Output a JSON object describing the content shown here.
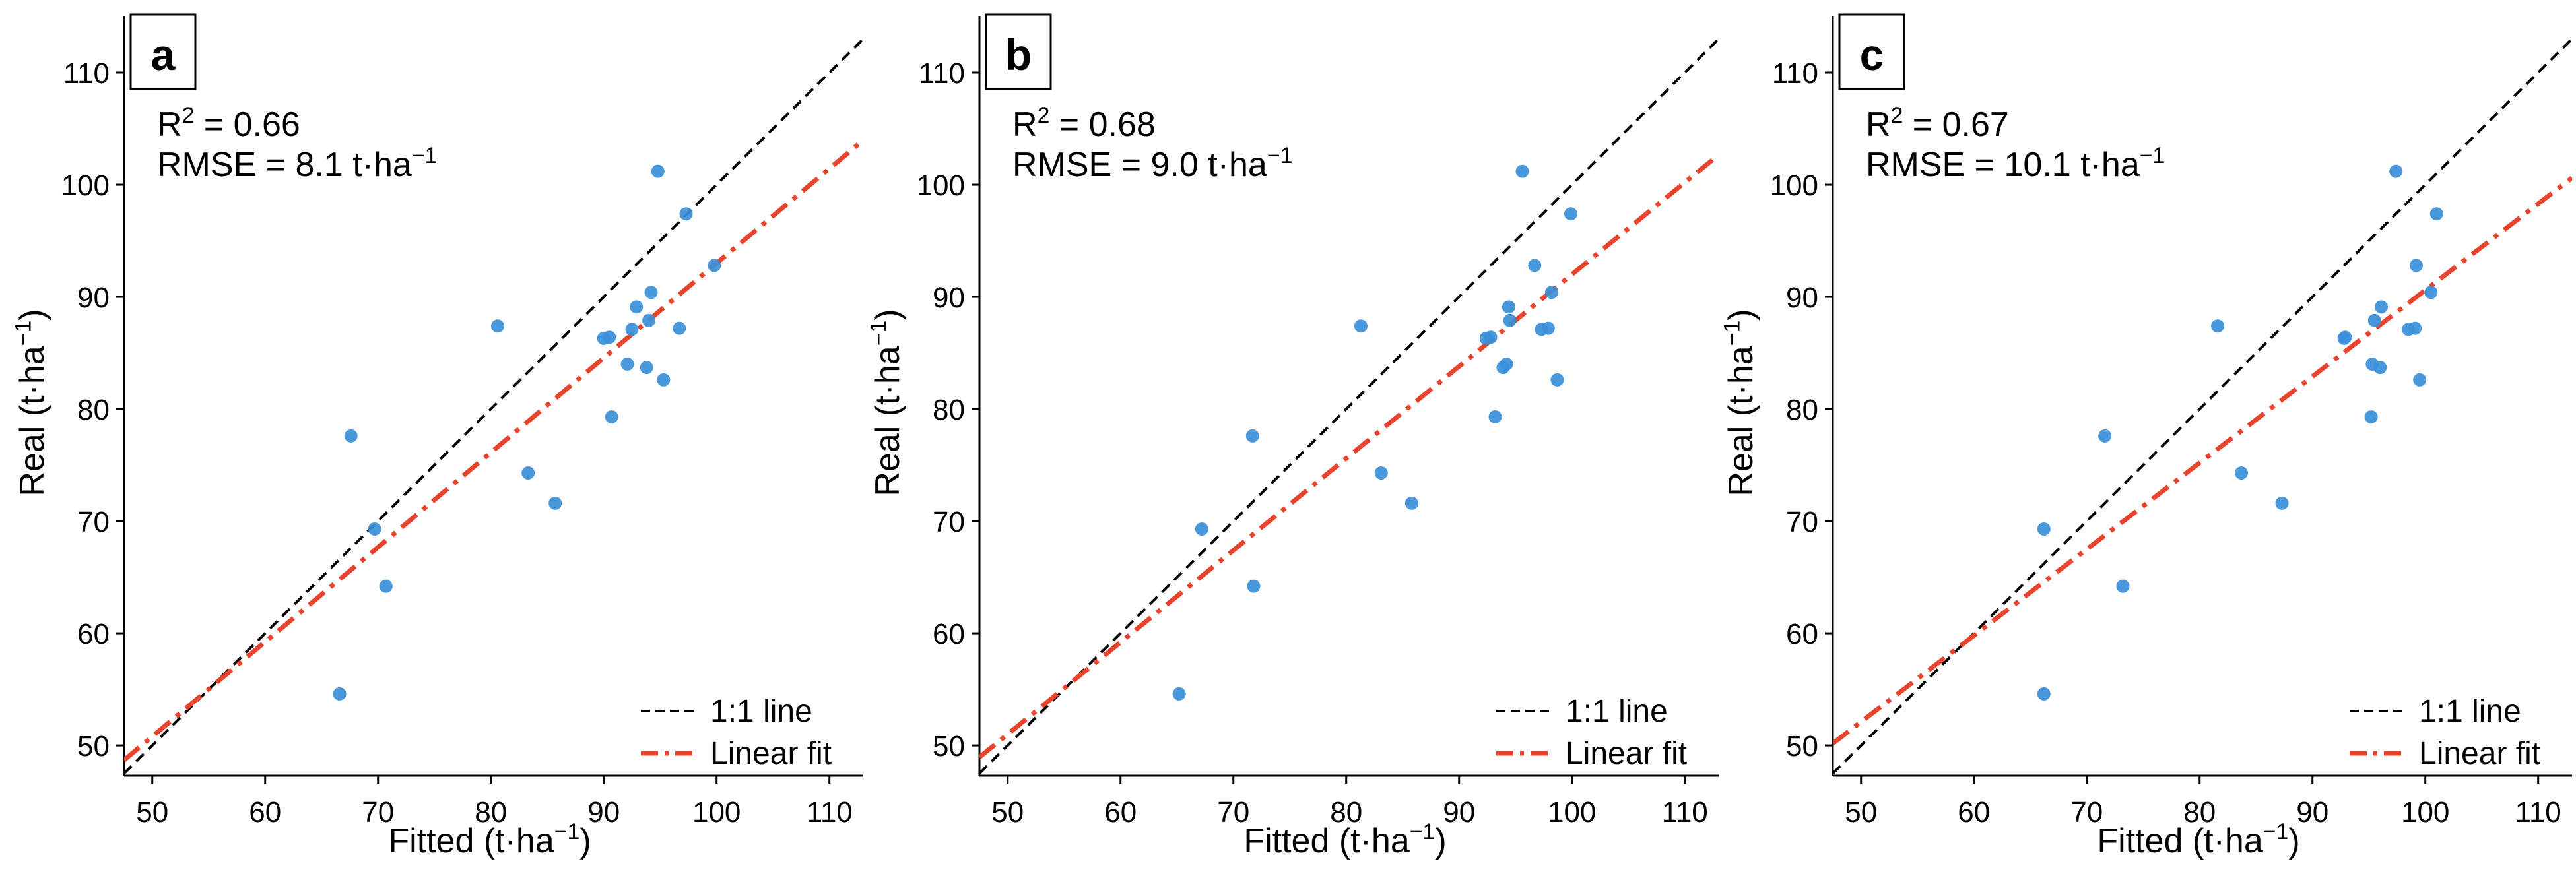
{
  "chart_data": [
    {
      "type": "scatter",
      "panel_label": "a",
      "stats": {
        "r2_value": "0.66",
        "rmse": "RMSE = 8.1 t·ha",
        "rmse_exp": "−1"
      },
      "xlim": [
        47.5,
        113
      ],
      "ylim": [
        47.3,
        115
      ],
      "points": [
        [
          66.6,
          54.6
        ],
        [
          67.6,
          77.6
        ],
        [
          69.7,
          69.3
        ],
        [
          70.7,
          64.2
        ],
        [
          80.6,
          87.4
        ],
        [
          83.3,
          74.3
        ],
        [
          85.7,
          71.6
        ],
        [
          90.0,
          86.3
        ],
        [
          90.5,
          86.4
        ],
        [
          90.7,
          79.3
        ],
        [
          92.1,
          84.0
        ],
        [
          92.5,
          87.1
        ],
        [
          92.9,
          89.1
        ],
        [
          93.8,
          83.7
        ],
        [
          94.0,
          87.9
        ],
        [
          94.2,
          90.4
        ],
        [
          94.8,
          101.2
        ],
        [
          95.3,
          82.6
        ],
        [
          96.7,
          87.2
        ],
        [
          97.3,
          97.4
        ],
        [
          99.8,
          92.8
        ]
      ],
      "fit": {
        "slope": 0.844,
        "intercept": 8.6
      }
    },
    {
      "type": "scatter",
      "panel_label": "b",
      "stats": {
        "r2_value": "0.68",
        "rmse": "RMSE = 9.0 t·ha",
        "rmse_exp": "−1"
      },
      "xlim": [
        47.5,
        113
      ],
      "ylim": [
        47.3,
        115
      ],
      "points": [
        [
          65.2,
          54.6
        ],
        [
          67.2,
          69.3
        ],
        [
          71.7,
          77.6
        ],
        [
          71.8,
          64.2
        ],
        [
          81.3,
          87.4
        ],
        [
          83.1,
          74.3
        ],
        [
          85.8,
          71.6
        ],
        [
          92.4,
          86.3
        ],
        [
          92.8,
          86.4
        ],
        [
          93.2,
          79.3
        ],
        [
          93.9,
          83.7
        ],
        [
          94.2,
          84.0
        ],
        [
          94.4,
          89.1
        ],
        [
          94.5,
          87.9
        ],
        [
          95.6,
          101.2
        ],
        [
          96.7,
          92.8
        ],
        [
          97.3,
          87.1
        ],
        [
          97.9,
          87.2
        ],
        [
          98.2,
          90.4
        ],
        [
          98.7,
          82.6
        ],
        [
          99.9,
          97.4
        ]
      ],
      "fit": {
        "slope": 0.82,
        "intercept": 10.0
      }
    },
    {
      "type": "scatter",
      "panel_label": "c",
      "stats": {
        "r2_value": "0.67",
        "rmse": "RMSE = 10.1 t·ha",
        "rmse_exp": "−1"
      },
      "xlim": [
        47.5,
        113
      ],
      "ylim": [
        47.3,
        115
      ],
      "points": [
        [
          66.2,
          54.6
        ],
        [
          66.2,
          69.3
        ],
        [
          71.6,
          77.6
        ],
        [
          73.2,
          64.2
        ],
        [
          81.6,
          87.4
        ],
        [
          83.7,
          74.3
        ],
        [
          87.3,
          71.6
        ],
        [
          92.8,
          86.3
        ],
        [
          92.9,
          86.4
        ],
        [
          95.2,
          79.3
        ],
        [
          95.3,
          84.0
        ],
        [
          95.5,
          87.9
        ],
        [
          96.0,
          83.7
        ],
        [
          96.1,
          89.1
        ],
        [
          97.4,
          101.2
        ],
        [
          98.5,
          87.1
        ],
        [
          99.1,
          87.2
        ],
        [
          99.2,
          92.8
        ],
        [
          99.5,
          82.6
        ],
        [
          100.5,
          90.4
        ],
        [
          101.0,
          97.4
        ]
      ],
      "fit": {
        "slope": 0.77,
        "intercept": 13.6
      }
    }
  ],
  "axes": {
    "xlabel": "Fitted (t·ha",
    "ylabel": "Real (t·ha",
    "unit_exp": "−1",
    "xticks": [
      50,
      60,
      70,
      80,
      90,
      100,
      110
    ],
    "yticks": [
      50,
      60,
      70,
      80,
      90,
      100,
      110
    ]
  },
  "legend": {
    "position": "bottom-right",
    "items": [
      {
        "label": "1:1 line",
        "color": "#000000",
        "style": "dashed"
      },
      {
        "label": "Linear fit",
        "color": "#e8432c",
        "style": "dashdot"
      }
    ]
  },
  "colors": {
    "points": "#3a8fd9",
    "fit": "#e8432c",
    "identity": "#000000"
  }
}
